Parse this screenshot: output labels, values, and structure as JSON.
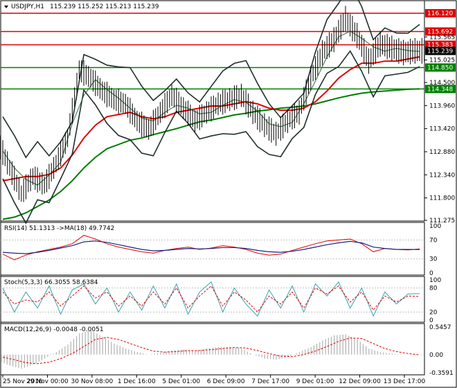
{
  "header": {
    "symbol_label": "USDJPY,H1",
    "ohlc": "115.239 115.252 115.213 115.239"
  },
  "panels": {
    "rsi": {
      "title": "RSI(14) 51.1313  ->MA(18) 49.7742"
    },
    "stoch": {
      "title": "Stoch(5,3,3) 66.3055 58.6384"
    },
    "macd": {
      "title": "MACD(12,26,9) -0.0048 -0.0051"
    }
  },
  "colors": {
    "price": "#000000",
    "red_ma": "#e00000",
    "green_ma": "#007a00",
    "bands": "#1e2d2d",
    "resistance": "#e00000",
    "support": "#008000",
    "rsi_line": "#e00000",
    "rsi_ma": "#1a237e",
    "stoch_k": "#3aa0b0",
    "stoch_d": "#e00000",
    "macd_hist": "#b0b0b0",
    "macd_signal": "#e00000",
    "current_price_bg": "#000000"
  },
  "chart_data": [
    {
      "type": "line",
      "name": "price",
      "ylim": [
        111.275,
        116.3
      ],
      "y_ticks": [
        "116.120",
        "115.692",
        "115.565",
        "115.383",
        "115.239",
        "115.025",
        "114.850",
        "114.500",
        "114.348",
        "113.960",
        "113.420",
        "112.880",
        "112.340",
        "111.800",
        "111.275"
      ],
      "x_ticks": [
        "25 Nov 2016",
        "29 Nov 00:00",
        "30 Nov 08:00",
        "1 Dec 16:00",
        "5 Dec 01:00",
        "6 Dec 09:00",
        "7 Dec 17:00",
        "9 Dec 01:00",
        "12 Dec 09:00",
        "13 Dec 17:00"
      ],
      "horizontal_levels": [
        {
          "value": 116.12,
          "label": "116.120",
          "role": "resistance"
        },
        {
          "value": 115.692,
          "label": "115.692",
          "role": "resistance"
        },
        {
          "value": 115.383,
          "label": "115.383",
          "role": "resistance"
        },
        {
          "value": 114.85,
          "label": "114.850",
          "role": "support"
        },
        {
          "value": 114.348,
          "label": "114.348",
          "role": "support"
        }
      ],
      "current_price": {
        "value": 115.239,
        "label": "115.239"
      },
      "series": [
        {
          "values": [
            113.1,
            112.5,
            111.9,
            112.3,
            112.1,
            112.6,
            113.2,
            114.8,
            114.6,
            114.3,
            114.1,
            114.0,
            113.6,
            113.4,
            113.8,
            114.2,
            113.9,
            113.6,
            113.8,
            114.0,
            114.1,
            114.2,
            113.8,
            113.5,
            113.3,
            113.6,
            113.8,
            114.6,
            115.2,
            115.5,
            116.0,
            115.6,
            115.0,
            115.4,
            115.3,
            115.2,
            115.24
          ]
        },
        {
          "values": [
            112.2,
            112.25,
            112.3,
            112.3,
            112.35,
            112.5,
            112.8,
            113.2,
            113.5,
            113.7,
            113.75,
            113.8,
            113.7,
            113.65,
            113.7,
            113.8,
            113.85,
            113.9,
            113.95,
            113.95,
            114.0,
            114.05,
            114.0,
            113.9,
            113.85,
            113.85,
            113.9,
            114.05,
            114.3,
            114.6,
            114.8,
            114.95,
            114.95,
            115.0,
            115.0,
            115.05,
            115.1
          ]
        },
        {
          "values": [
            111.3,
            111.35,
            111.45,
            111.6,
            111.75,
            111.95,
            112.2,
            112.5,
            112.75,
            112.95,
            113.05,
            113.15,
            113.2,
            113.28,
            113.35,
            113.42,
            113.5,
            113.58,
            113.62,
            113.68,
            113.74,
            113.78,
            113.83,
            113.86,
            113.9,
            113.92,
            113.95,
            114.0,
            114.07,
            114.14,
            114.2,
            114.25,
            114.28,
            114.3,
            114.32,
            114.34,
            114.35
          ]
        }
      ]
    },
    {
      "type": "line",
      "name": "rsi",
      "ylim": [
        0,
        100
      ],
      "y_ticks": [
        "100",
        "70",
        "30",
        "0"
      ],
      "series": [
        {
          "values": [
            40,
            28,
            38,
            45,
            50,
            55,
            62,
            80,
            72,
            62,
            55,
            50,
            45,
            42,
            48,
            52,
            55,
            50,
            53,
            58,
            55,
            50,
            42,
            38,
            40,
            48,
            55,
            62,
            68,
            70,
            72,
            62,
            45,
            52,
            50,
            49,
            51
          ]
        },
        {
          "values": [
            44,
            42,
            41,
            44,
            48,
            53,
            58,
            66,
            68,
            65,
            60,
            55,
            50,
            47,
            48,
            50,
            52,
            51,
            52,
            54,
            54,
            52,
            48,
            45,
            44,
            46,
            50,
            55,
            60,
            64,
            67,
            64,
            55,
            52,
            50,
            50,
            49.8
          ]
        }
      ]
    },
    {
      "type": "line",
      "name": "stochastic",
      "ylim": [
        0,
        100
      ],
      "y_ticks": [
        "100",
        "80",
        "20",
        "0"
      ],
      "series": [
        {
          "values": [
            80,
            20,
            70,
            30,
            85,
            15,
            75,
            90,
            40,
            80,
            20,
            70,
            25,
            85,
            30,
            90,
            15,
            70,
            95,
            20,
            80,
            40,
            10,
            75,
            30,
            85,
            20,
            90,
            60,
            95,
            30,
            80,
            10,
            70,
            40,
            65,
            66
          ]
        },
        {
          "values": [
            70,
            40,
            50,
            45,
            70,
            35,
            60,
            85,
            55,
            70,
            35,
            60,
            35,
            70,
            40,
            80,
            30,
            60,
            85,
            35,
            70,
            50,
            20,
            60,
            40,
            70,
            30,
            80,
            65,
            85,
            45,
            70,
            25,
            60,
            45,
            60,
            58.6
          ]
        }
      ]
    },
    {
      "type": "bar",
      "name": "macd",
      "ylim": [
        -0.3591,
        0.5457
      ],
      "y_ticks": [
        "0.5457",
        "0.00",
        "-0.3591"
      ],
      "series": [
        {
          "values": [
            -0.12,
            -0.22,
            -0.28,
            -0.2,
            -0.08,
            0.05,
            0.2,
            0.42,
            0.48,
            0.35,
            0.22,
            0.12,
            0.05,
            0.0,
            0.04,
            0.08,
            0.1,
            0.08,
            0.12,
            0.15,
            0.16,
            0.12,
            0.0,
            -0.08,
            -0.1,
            -0.05,
            0.05,
            0.15,
            0.28,
            0.38,
            0.4,
            0.3,
            0.12,
            0.05,
            0.02,
            -0.002,
            -0.0048
          ]
        },
        {
          "values": [
            -0.05,
            -0.1,
            -0.16,
            -0.18,
            -0.15,
            -0.08,
            0.02,
            0.16,
            0.3,
            0.34,
            0.3,
            0.22,
            0.14,
            0.07,
            0.05,
            0.06,
            0.08,
            0.08,
            0.1,
            0.12,
            0.14,
            0.13,
            0.08,
            0.02,
            -0.03,
            -0.04,
            0.0,
            0.07,
            0.16,
            0.26,
            0.33,
            0.32,
            0.22,
            0.12,
            0.06,
            0.02,
            -0.0051
          ]
        }
      ]
    }
  ]
}
